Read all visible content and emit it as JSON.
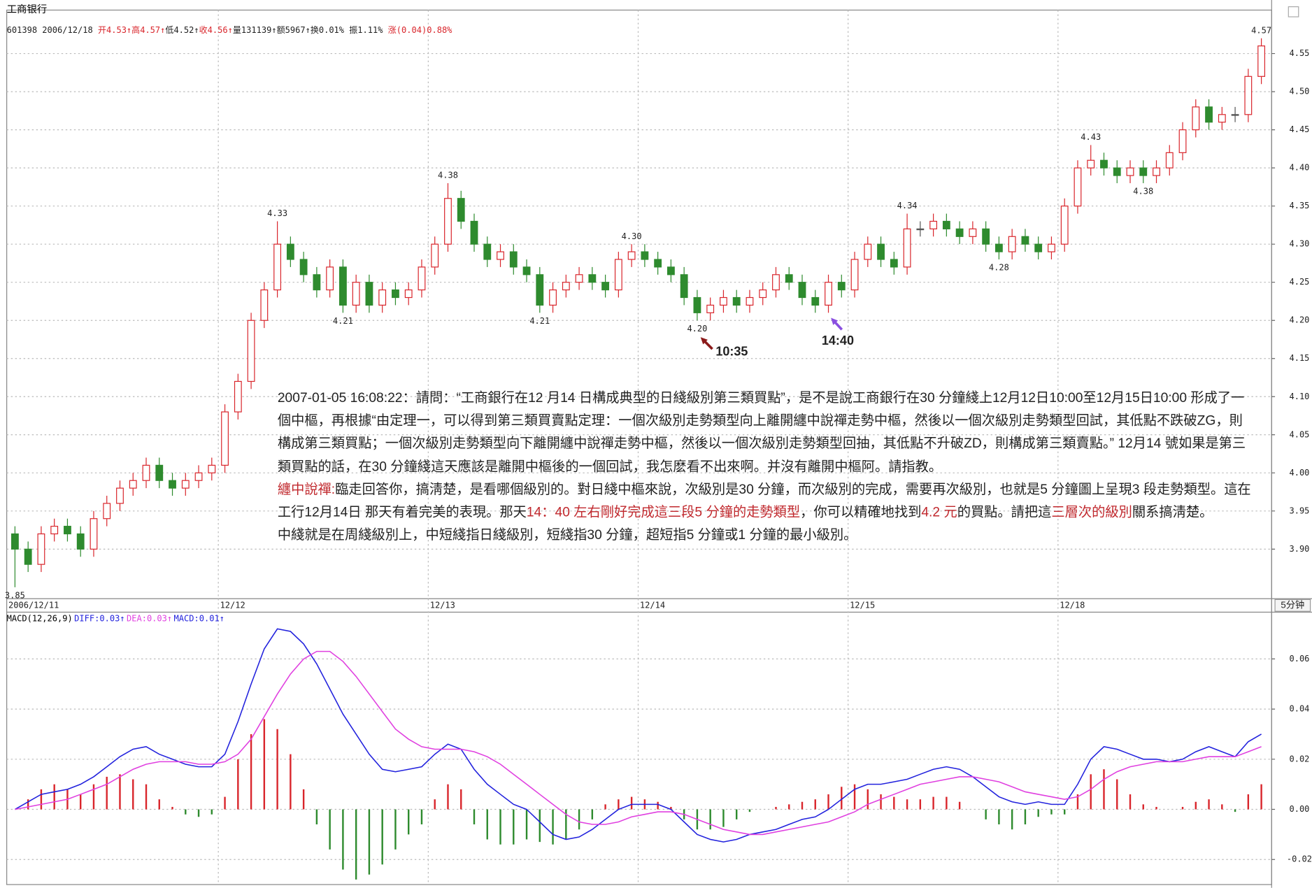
{
  "chart_data": [
    {
      "type": "candlestick",
      "title": "工商银行",
      "info": [
        {
          "text": "601398 2006/12/18 ",
          "color": "#222222"
        },
        {
          "text": "开4.53↑高4.57↑",
          "color": "#d9262c"
        },
        {
          "text": "低4.52↑",
          "color": "#222222"
        },
        {
          "text": "收4.56↑",
          "color": "#d9262c"
        },
        {
          "text": "量131139↑额5967↑换0.01% 振1.11% ",
          "color": "#222222"
        },
        {
          "text": "涨(0.04)0.88%",
          "color": "#d9262c"
        }
      ],
      "categories": [
        "2006/12/11",
        null,
        null,
        null,
        null,
        null,
        null,
        null,
        null,
        null,
        null,
        null,
        null,
        null,
        null,
        null,
        "12/12",
        null,
        null,
        null,
        null,
        null,
        null,
        null,
        null,
        null,
        null,
        null,
        null,
        null,
        null,
        null,
        "12/13",
        null,
        null,
        null,
        null,
        null,
        null,
        null,
        null,
        null,
        null,
        null,
        null,
        null,
        null,
        null,
        "12/14",
        null,
        null,
        null,
        null,
        null,
        null,
        null,
        null,
        null,
        null,
        null,
        null,
        null,
        null,
        null,
        "12/15",
        null,
        null,
        null,
        null,
        null,
        null,
        null,
        null,
        null,
        null,
        null,
        null,
        null,
        null,
        null,
        "12/18",
        null,
        null,
        null,
        null,
        null,
        null,
        null,
        null,
        null,
        null,
        null,
        null,
        null,
        null,
        null
      ],
      "open": [
        3.92,
        3.9,
        3.88,
        3.92,
        3.93,
        3.92,
        3.9,
        3.94,
        3.96,
        3.98,
        3.99,
        4.01,
        3.99,
        3.98,
        3.99,
        4.0,
        4.01,
        4.08,
        4.12,
        4.2,
        4.24,
        4.3,
        4.28,
        4.26,
        4.24,
        4.27,
        4.22,
        4.25,
        4.22,
        4.24,
        4.23,
        4.24,
        4.27,
        4.3,
        4.36,
        4.33,
        4.3,
        4.28,
        4.29,
        4.27,
        4.26,
        4.22,
        4.24,
        4.25,
        4.26,
        4.25,
        4.24,
        4.28,
        4.29,
        4.28,
        4.27,
        4.26,
        4.23,
        4.21,
        4.22,
        4.23,
        4.22,
        4.23,
        4.24,
        4.26,
        4.25,
        4.23,
        4.22,
        4.25,
        4.24,
        4.28,
        4.3,
        4.28,
        4.27,
        4.32,
        4.32,
        4.33,
        4.32,
        4.31,
        4.32,
        4.3,
        4.29,
        4.31,
        4.3,
        4.29,
        4.3,
        4.35,
        4.4,
        4.41,
        4.4,
        4.39,
        4.4,
        4.39,
        4.4,
        4.42,
        4.45,
        4.48,
        4.46,
        4.47,
        4.47,
        4.52
      ],
      "high": [
        3.93,
        3.91,
        3.93,
        3.94,
        3.94,
        3.93,
        3.95,
        3.97,
        3.99,
        4.0,
        4.02,
        4.02,
        4.0,
        4.0,
        4.01,
        4.02,
        4.09,
        4.13,
        4.21,
        4.25,
        4.33,
        4.31,
        4.29,
        4.27,
        4.28,
        4.28,
        4.26,
        4.26,
        4.25,
        4.25,
        4.25,
        4.28,
        4.31,
        4.38,
        4.37,
        4.34,
        4.31,
        4.3,
        4.3,
        4.28,
        4.27,
        4.25,
        4.26,
        4.27,
        4.27,
        4.26,
        4.29,
        4.3,
        4.3,
        4.29,
        4.28,
        4.27,
        4.24,
        4.23,
        4.24,
        4.24,
        4.24,
        4.25,
        4.27,
        4.27,
        4.26,
        4.24,
        4.26,
        4.26,
        4.29,
        4.31,
        4.31,
        4.29,
        4.34,
        4.33,
        4.34,
        4.34,
        4.33,
        4.33,
        4.33,
        4.31,
        4.32,
        4.32,
        4.31,
        4.31,
        4.36,
        4.41,
        4.43,
        4.42,
        4.41,
        4.41,
        4.41,
        4.41,
        4.43,
        4.46,
        4.49,
        4.49,
        4.48,
        4.48,
        4.53,
        4.57
      ],
      "low": [
        3.85,
        3.87,
        3.87,
        3.91,
        3.91,
        3.89,
        3.89,
        3.93,
        3.95,
        3.97,
        3.98,
        3.98,
        3.97,
        3.97,
        3.98,
        3.99,
        4.0,
        4.07,
        4.11,
        4.19,
        4.23,
        4.27,
        4.25,
        4.23,
        4.23,
        4.21,
        4.21,
        4.21,
        4.21,
        4.22,
        4.22,
        4.23,
        4.26,
        4.29,
        4.32,
        4.29,
        4.27,
        4.27,
        4.26,
        4.25,
        4.21,
        4.21,
        4.23,
        4.24,
        4.24,
        4.23,
        4.23,
        4.27,
        4.27,
        4.26,
        4.25,
        4.22,
        4.2,
        4.2,
        4.21,
        4.21,
        4.21,
        4.22,
        4.23,
        4.24,
        4.22,
        4.21,
        4.21,
        4.23,
        4.23,
        4.27,
        4.27,
        4.26,
        4.26,
        4.31,
        4.31,
        4.31,
        4.3,
        4.3,
        4.29,
        4.28,
        4.28,
        4.29,
        4.28,
        4.28,
        4.29,
        4.34,
        4.39,
        4.39,
        4.38,
        4.38,
        4.38,
        4.38,
        4.39,
        4.41,
        4.44,
        4.45,
        4.45,
        4.46,
        4.46,
        4.51
      ],
      "close": [
        3.9,
        3.88,
        3.92,
        3.93,
        3.92,
        3.9,
        3.94,
        3.96,
        3.98,
        3.99,
        4.01,
        3.99,
        3.98,
        3.99,
        4.0,
        4.01,
        4.08,
        4.12,
        4.2,
        4.24,
        4.3,
        4.28,
        4.26,
        4.24,
        4.27,
        4.22,
        4.25,
        4.22,
        4.24,
        4.23,
        4.24,
        4.27,
        4.3,
        4.36,
        4.33,
        4.3,
        4.28,
        4.29,
        4.27,
        4.26,
        4.22,
        4.24,
        4.25,
        4.26,
        4.25,
        4.24,
        4.28,
        4.29,
        4.28,
        4.27,
        4.26,
        4.23,
        4.21,
        4.22,
        4.23,
        4.22,
        4.23,
        4.24,
        4.26,
        4.25,
        4.23,
        4.22,
        4.25,
        4.24,
        4.28,
        4.3,
        4.28,
        4.27,
        4.32,
        4.32,
        4.33,
        4.32,
        4.31,
        4.32,
        4.3,
        4.29,
        4.31,
        4.3,
        4.29,
        4.3,
        4.35,
        4.4,
        4.41,
        4.4,
        4.39,
        4.4,
        4.39,
        4.4,
        4.42,
        4.45,
        4.48,
        4.46,
        4.47,
        4.47,
        4.52,
        4.56
      ],
      "high_labels": [
        null,
        null,
        null,
        null,
        null,
        null,
        null,
        null,
        null,
        null,
        null,
        null,
        null,
        null,
        null,
        null,
        null,
        null,
        null,
        null,
        "4.33",
        null,
        null,
        null,
        null,
        null,
        null,
        null,
        null,
        null,
        null,
        null,
        null,
        "4.38",
        null,
        null,
        null,
        null,
        null,
        null,
        null,
        null,
        null,
        null,
        null,
        null,
        null,
        "4.30",
        null,
        null,
        null,
        null,
        null,
        null,
        null,
        null,
        null,
        null,
        null,
        null,
        null,
        null,
        null,
        null,
        null,
        null,
        null,
        null,
        "4.34",
        null,
        null,
        null,
        null,
        null,
        null,
        null,
        null,
        null,
        null,
        null,
        null,
        null,
        "4.43",
        null,
        null,
        null,
        null,
        null,
        null,
        null,
        null,
        null,
        null,
        null,
        null,
        "4.57"
      ],
      "low_labels": [
        "3.85",
        null,
        null,
        null,
        null,
        null,
        null,
        null,
        null,
        null,
        null,
        null,
        null,
        null,
        null,
        null,
        null,
        null,
        null,
        null,
        null,
        null,
        null,
        null,
        null,
        "4.21",
        null,
        null,
        null,
        null,
        null,
        null,
        null,
        null,
        null,
        null,
        null,
        null,
        null,
        null,
        "4.21",
        null,
        null,
        null,
        null,
        null,
        null,
        null,
        null,
        null,
        null,
        null,
        "4.20",
        null,
        null,
        null,
        null,
        null,
        null,
        null,
        null,
        null,
        null,
        null,
        null,
        null,
        null,
        null,
        null,
        null,
        null,
        null,
        null,
        null,
        null,
        "4.28",
        null,
        null,
        null,
        null,
        null,
        null,
        null,
        null,
        null,
        null,
        "4.38",
        null,
        null,
        null,
        null,
        null,
        null,
        null,
        null,
        null
      ],
      "ylim": [
        3.835,
        4.607
      ],
      "yticks": [
        {
          "value": 3.9,
          "label": "3.90"
        },
        3.95,
        {
          "value": 4,
          "label": "4.00"
        },
        4.05,
        {
          "value": 4.1,
          "label": "4.10"
        },
        4.15,
        {
          "value": 4.2,
          "label": "4.20"
        },
        4.25,
        {
          "value": 4.3,
          "label": "4.30"
        },
        4.35,
        {
          "value": 4.4,
          "label": "4.40"
        },
        4.45,
        {
          "value": 4.5,
          "label": "4.50"
        },
        4.55
      ],
      "grid": true,
      "up_color": "#d9262c",
      "down_color": "#2e8b2e",
      "period": "5分钟",
      "annotations": [
        {
          "text": "10:35",
          "color": "#b22222",
          "arrow_color": "#8b1a1a"
        },
        {
          "text": "14:40",
          "color": "#b22222",
          "arrow_color": "#8a4fe0"
        }
      ],
      "note": [
        [
          {
            "text": "2007-01-05 16:08:22：請問：“工商銀行在12 月14 日構成典型的日綫級別第三類買點”，是不是說工商銀行在30 分鐘綫上12月12日10:00至12月15日10:00 形成了一個中樞，再根據“由定理一，可以得到第三類買賣點定理：一個次級別走勢類型向上離開纏中說禪走勢中樞，然後以一個次級別走勢類型回試，其低點不跌破ZG，則構成第三類買點；一個次級別走勢類型向下離開纏中說禪走勢中樞，然後以一個次級別走勢類型回抽，其低點不升破ZD，則構成第三類賣點。” 12月14 號如果是第三類買點的話，在30 分鐘綫這天應該是離開中樞後的一個回試，我怎麽看不出來啊。并沒有離開中樞阿。請指教。",
            "color": "#222222"
          }
        ],
        [
          {
            "text": "纏中說禪:",
            "color": "#c0282d"
          },
          {
            "text": "臨走回答你，搞淸楚，是看哪個級別的。對日綫中樞來說，次級別是30 分鐘，而次級別的完成，需要再次級別，也就是5 分鐘圖上呈現3 段走勢類型。這在工行12月14日 那天有着完美的表現。那天",
            "color": "#222222"
          },
          {
            "text": "14：40 左右剛好完成這三段5 分鐘的走勢類型",
            "color": "#c0282d"
          },
          {
            "text": "，你可以精確地找到",
            "color": "#222222"
          },
          {
            "text": "4.2 元",
            "color": "#c0282d"
          },
          {
            "text": "的買點。請把這",
            "color": "#222222"
          },
          {
            "text": "三層次的級別",
            "color": "#c0282d"
          },
          {
            "text": "關系搞淸楚。",
            "color": "#222222"
          }
        ],
        [
          {
            "text": "中綫就是在周綫級別上，中短綫指日綫級別，短綫指30 分鐘，超短指5 分鐘或1 分鐘的最小級別。",
            "color": "#222222"
          }
        ]
      ]
    },
    {
      "type": "macd",
      "title": "MACD(12,26,9)",
      "ylim": [
        -0.03,
        0.078
      ],
      "yticks": [
        -0.02,
        {
          "value": 0,
          "label": "0.00"
        },
        0.02,
        0.04,
        0.06
      ],
      "grid": true,
      "series": [
        {
          "name": "DIFF:0.03↑",
          "color": "#2222dd",
          "values": [
            0.0,
            0.003,
            0.006,
            0.007,
            0.008,
            0.01,
            0.013,
            0.017,
            0.021,
            0.024,
            0.025,
            0.022,
            0.02,
            0.018,
            0.017,
            0.017,
            0.022,
            0.035,
            0.05,
            0.064,
            0.072,
            0.071,
            0.066,
            0.058,
            0.048,
            0.038,
            0.03,
            0.022,
            0.016,
            0.015,
            0.016,
            0.017,
            0.022,
            0.026,
            0.024,
            0.016,
            0.01,
            0.006,
            0.002,
            0.0,
            -0.005,
            -0.01,
            -0.012,
            -0.011,
            -0.008,
            -0.004,
            0.0,
            0.002,
            0.002,
            0.002,
            0.0,
            -0.005,
            -0.01,
            -0.012,
            -0.013,
            -0.012,
            -0.01,
            -0.009,
            -0.008,
            -0.006,
            -0.004,
            -0.003,
            0.0,
            0.004,
            0.008,
            0.01,
            0.01,
            0.011,
            0.012,
            0.014,
            0.016,
            0.017,
            0.016,
            0.013,
            0.009,
            0.005,
            0.003,
            0.002,
            0.003,
            0.002,
            0.002,
            0.01,
            0.02,
            0.025,
            0.024,
            0.022,
            0.02,
            0.02,
            0.019,
            0.02,
            0.023,
            0.025,
            0.023,
            0.021,
            0.027,
            0.03
          ]
        },
        {
          "name": "DEA:0.03↑",
          "color": "#e040e0",
          "values": [
            0.0,
            0.001,
            0.002,
            0.003,
            0.004,
            0.006,
            0.008,
            0.01,
            0.013,
            0.016,
            0.018,
            0.019,
            0.019,
            0.019,
            0.018,
            0.018,
            0.019,
            0.022,
            0.028,
            0.037,
            0.046,
            0.054,
            0.06,
            0.063,
            0.063,
            0.059,
            0.053,
            0.046,
            0.039,
            0.032,
            0.028,
            0.025,
            0.024,
            0.024,
            0.024,
            0.023,
            0.021,
            0.018,
            0.014,
            0.01,
            0.006,
            0.002,
            -0.002,
            -0.005,
            -0.006,
            -0.006,
            -0.005,
            -0.003,
            -0.002,
            -0.001,
            -0.001,
            -0.002,
            -0.004,
            -0.006,
            -0.008,
            -0.009,
            -0.01,
            -0.01,
            -0.009,
            -0.008,
            -0.007,
            -0.006,
            -0.005,
            -0.003,
            -0.001,
            0.002,
            0.004,
            0.006,
            0.008,
            0.01,
            0.011,
            0.012,
            0.013,
            0.013,
            0.012,
            0.011,
            0.009,
            0.007,
            0.006,
            0.005,
            0.004,
            0.005,
            0.008,
            0.012,
            0.015,
            0.017,
            0.018,
            0.019,
            0.019,
            0.019,
            0.02,
            0.021,
            0.021,
            0.021,
            0.023,
            0.025
          ]
        },
        {
          "name": "MACD:0.01↑",
          "color": "#2222dd",
          "style": "histogram",
          "up_color": "#d9262c",
          "down_color": "#2e8b2e",
          "values": [
            0.0,
            0.004,
            0.008,
            0.01,
            0.008,
            0.006,
            0.01,
            0.013,
            0.014,
            0.012,
            0.01,
            0.004,
            0.001,
            -0.002,
            -0.003,
            -0.002,
            0.005,
            0.02,
            0.03,
            0.036,
            0.032,
            0.022,
            0.008,
            -0.006,
            -0.016,
            -0.024,
            -0.028,
            -0.026,
            -0.022,
            -0.016,
            -0.01,
            -0.006,
            0.004,
            0.01,
            0.008,
            -0.006,
            -0.012,
            -0.014,
            -0.014,
            -0.012,
            -0.013,
            -0.014,
            -0.012,
            -0.008,
            -0.004,
            0.002,
            0.004,
            0.005,
            0.004,
            0.003,
            0.001,
            -0.004,
            -0.008,
            -0.008,
            -0.007,
            -0.004,
            -0.001,
            0.0,
            0.001,
            0.002,
            0.003,
            0.004,
            0.006,
            0.009,
            0.01,
            0.008,
            0.006,
            0.005,
            0.004,
            0.004,
            0.005,
            0.005,
            0.003,
            0.0,
            -0.004,
            -0.006,
            -0.008,
            -0.006,
            -0.003,
            -0.002,
            -0.002,
            0.006,
            0.014,
            0.016,
            0.012,
            0.006,
            0.002,
            0.001,
            0.0,
            0.001,
            0.003,
            0.004,
            0.002,
            -0.001,
            0.006,
            0.01
          ]
        }
      ]
    }
  ]
}
